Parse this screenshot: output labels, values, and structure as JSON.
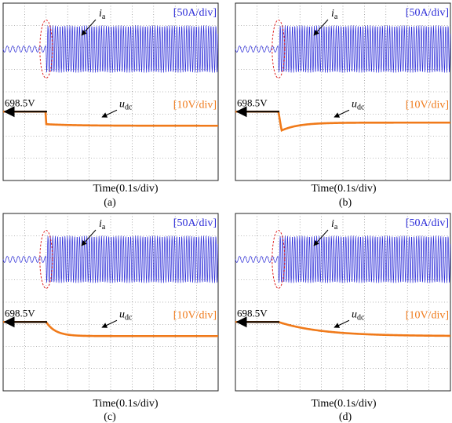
{
  "figure": {
    "ia_scale_label": "[50A/div]",
    "udc_scale_label": "[10V/div]",
    "voltage_label": "698.5V",
    "xlabel": "Time(0.1s/div)",
    "colors": {
      "current": "#2b2bd8",
      "voltage": "#f07a1a",
      "ellipse": "#e02020",
      "grid": "#777777",
      "arrow": "#000000"
    }
  },
  "chart_data": [
    {
      "type": "line",
      "panel_label": "(a)",
      "xlabel": "Time(0.1s/div)",
      "series": [
        {
          "name": "i",
          "name_sub": "a",
          "scale": "[50A/div]",
          "shape": "ac-step",
          "step_at_div": 2.0
        },
        {
          "name": "u",
          "name_sub": "dc",
          "scale": "[10V/div]",
          "shape": "dip",
          "step_at_div": 2.0,
          "initial_value_V": 698.5
        }
      ]
    },
    {
      "type": "line",
      "panel_label": "(b)",
      "xlabel": "Time(0.1s/div)",
      "series": [
        {
          "name": "i",
          "name_sub": "a",
          "scale": "[50A/div]",
          "shape": "ac-step",
          "step_at_div": 2.0
        },
        {
          "name": "u",
          "name_sub": "dc",
          "scale": "[10V/div]",
          "shape": "dip-recover",
          "step_at_div": 2.0,
          "initial_value_V": 698.5
        }
      ]
    },
    {
      "type": "line",
      "panel_label": "(c)",
      "xlabel": "Time(0.1s/div)",
      "series": [
        {
          "name": "i",
          "name_sub": "a",
          "scale": "[50A/div]",
          "shape": "ac-step",
          "step_at_div": 2.0
        },
        {
          "name": "u",
          "name_sub": "dc",
          "scale": "[10V/div]",
          "shape": "ramp-fast",
          "step_at_div": 2.0,
          "initial_value_V": 698.5
        }
      ]
    },
    {
      "type": "line",
      "panel_label": "(d)",
      "xlabel": "Time(0.1s/div)",
      "series": [
        {
          "name": "i",
          "name_sub": "a",
          "scale": "[50A/div]",
          "shape": "ac-step",
          "step_at_div": 2.0
        },
        {
          "name": "u",
          "name_sub": "dc",
          "scale": "[10V/div]",
          "shape": "ramp-slow",
          "step_at_div": 2.0,
          "initial_value_V": 698.5
        }
      ]
    }
  ]
}
